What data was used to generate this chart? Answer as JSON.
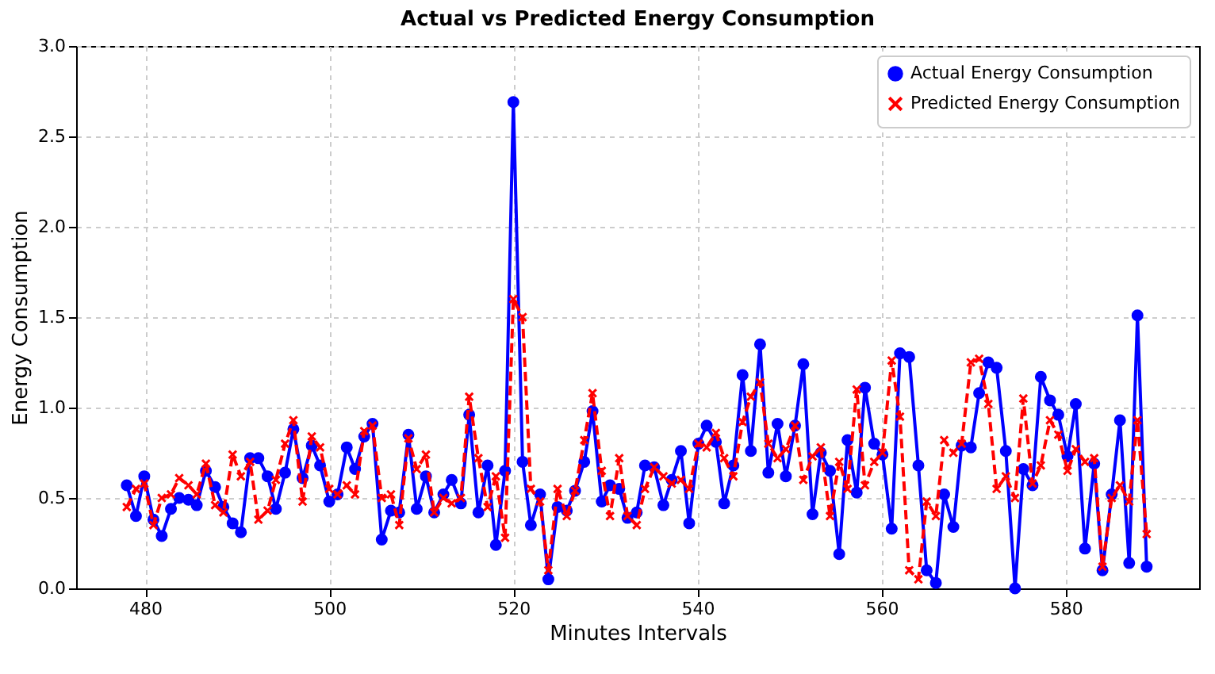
{
  "chart_data": {
    "type": "line",
    "title": "Actual vs Predicted Energy Consumption",
    "xlabel": "Minutes Intervals",
    "ylabel": "Energy Consumption",
    "x": [
      478.0,
      479.0,
      479.9,
      480.9,
      481.8,
      482.8,
      483.7,
      484.7,
      485.6,
      486.6,
      487.6,
      488.5,
      489.5,
      490.4,
      491.4,
      492.3,
      493.3,
      494.2,
      495.2,
      496.1,
      497.1,
      498.1,
      499.0,
      500.0,
      500.9,
      501.9,
      502.8,
      503.8,
      504.7,
      505.7,
      506.7,
      507.6,
      508.6,
      509.5,
      510.5,
      511.4,
      512.4,
      513.3,
      514.3,
      515.2,
      516.2,
      517.2,
      518.1,
      519.1,
      520.0,
      521.0,
      521.9,
      522.9,
      523.8,
      524.8,
      525.8,
      526.7,
      527.7,
      528.6,
      529.6,
      530.5,
      531.5,
      532.4,
      533.4,
      534.3,
      535.3,
      536.3,
      537.2,
      538.2,
      539.1,
      540.1,
      541.0,
      542.0,
      542.9,
      543.9,
      544.9,
      545.8,
      546.8,
      547.7,
      548.7,
      549.6,
      550.6,
      551.5,
      552.5,
      553.4,
      554.4,
      555.4,
      556.3,
      557.3,
      558.2,
      559.2,
      560.1,
      561.1,
      562.0,
      563.0,
      564.0,
      564.9,
      565.9,
      566.8,
      567.8,
      568.7,
      569.7,
      570.6,
      571.6,
      572.5,
      573.5,
      574.5,
      575.4,
      576.4,
      577.3,
      578.3,
      579.2,
      580.2,
      581.1,
      582.1,
      583.1,
      584.0,
      585.0,
      585.9,
      586.9,
      587.8,
      588.8
    ],
    "series": [
      {
        "name": "Actual Energy Consumption",
        "color": "#0000ff",
        "marker": "circle",
        "line_style": "solid",
        "values": [
          0.57,
          0.4,
          0.62,
          0.38,
          0.29,
          0.44,
          0.5,
          0.49,
          0.46,
          0.65,
          0.56,
          0.45,
          0.36,
          0.31,
          0.72,
          0.72,
          0.62,
          0.44,
          0.64,
          0.88,
          0.61,
          0.79,
          0.68,
          0.48,
          0.52,
          0.78,
          0.66,
          0.84,
          0.91,
          0.27,
          0.43,
          0.42,
          0.85,
          0.44,
          0.62,
          0.42,
          0.52,
          0.6,
          0.47,
          0.96,
          0.42,
          0.68,
          0.24,
          0.65,
          2.69,
          0.7,
          0.35,
          0.52,
          0.05,
          0.45,
          0.43,
          0.54,
          0.7,
          0.98,
          0.48,
          0.57,
          0.55,
          0.39,
          0.42,
          0.68,
          0.67,
          0.46,
          0.6,
          0.76,
          0.36,
          0.8,
          0.9,
          0.81,
          0.47,
          0.68,
          1.18,
          0.76,
          1.35,
          0.64,
          0.91,
          0.62,
          0.9,
          1.24,
          0.41,
          0.75,
          0.65,
          0.19,
          0.82,
          0.53,
          1.11,
          0.8,
          0.74,
          0.33,
          1.3,
          1.28,
          0.68,
          0.1,
          0.03,
          0.52,
          0.34,
          0.79,
          0.78,
          1.08,
          1.25,
          1.22,
          0.76,
          0.0,
          0.66,
          0.57,
          1.17,
          1.04,
          0.96,
          0.73,
          1.02,
          0.22,
          0.69,
          0.1,
          0.52,
          0.93,
          0.14,
          1.51,
          0.12
        ]
      },
      {
        "name": "Predicted Energy Consumption",
        "color": "#ff0000",
        "marker": "cross",
        "line_style": "dashed",
        "values": [
          0.45,
          0.55,
          0.58,
          0.35,
          0.5,
          0.52,
          0.61,
          0.57,
          0.52,
          0.69,
          0.46,
          0.42,
          0.74,
          0.62,
          0.7,
          0.38,
          0.43,
          0.6,
          0.8,
          0.93,
          0.48,
          0.84,
          0.78,
          0.55,
          0.52,
          0.57,
          0.52,
          0.87,
          0.9,
          0.5,
          0.52,
          0.35,
          0.83,
          0.66,
          0.74,
          0.42,
          0.5,
          0.47,
          0.5,
          1.06,
          0.72,
          0.45,
          0.62,
          0.28,
          1.6,
          1.5,
          0.55,
          0.48,
          0.1,
          0.55,
          0.4,
          0.54,
          0.82,
          1.08,
          0.65,
          0.4,
          0.72,
          0.4,
          0.35,
          0.55,
          0.67,
          0.62,
          0.58,
          0.6,
          0.55,
          0.8,
          0.78,
          0.86,
          0.72,
          0.62,
          0.92,
          1.06,
          1.14,
          0.8,
          0.72,
          0.77,
          0.9,
          0.6,
          0.73,
          0.78,
          0.4,
          0.7,
          0.55,
          1.1,
          0.57,
          0.7,
          0.75,
          1.26,
          0.95,
          0.1,
          0.05,
          0.48,
          0.4,
          0.82,
          0.75,
          0.8,
          1.25,
          1.27,
          1.02,
          0.55,
          0.62,
          0.5,
          1.05,
          0.58,
          0.68,
          0.93,
          0.85,
          0.65,
          0.77,
          0.7,
          0.72,
          0.12,
          0.5,
          0.57,
          0.48,
          0.93,
          0.3
        ]
      }
    ],
    "xlim": [
      472.5,
      594.5
    ],
    "xticks": [
      480,
      500,
      520,
      540,
      560,
      580
    ],
    "ylim": [
      0,
      3
    ],
    "yticks": [
      {
        "value": 0,
        "label": "0.0"
      },
      {
        "value": 0.5,
        "label": "0.5"
      },
      {
        "value": 1,
        "label": "1.0"
      },
      {
        "value": 1.5,
        "label": "1.5"
      },
      {
        "value": 2,
        "label": "2.0"
      },
      {
        "value": 2.5,
        "label": "2.5"
      },
      {
        "value": 3,
        "label": "3.0"
      }
    ],
    "grid": true,
    "legend": "top right"
  }
}
